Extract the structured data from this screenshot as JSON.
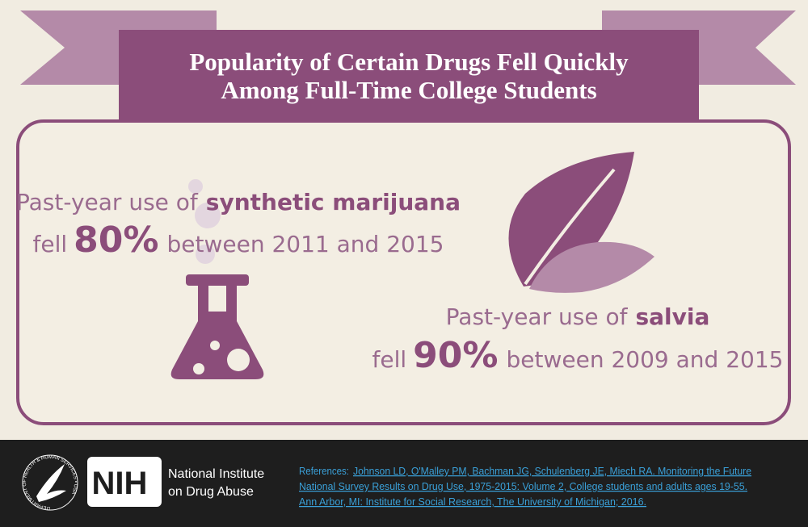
{
  "header": {
    "title_lines": [
      "Popularity of Certain Drugs Fell Quickly",
      "Among Full-Time College Students"
    ]
  },
  "stats": [
    {
      "line1": [
        "Past-year use of",
        "synthetic marijuana"
      ],
      "line2": [
        "fell",
        "80%",
        "between 2011 and 2015"
      ]
    },
    {
      "line1": [
        "Past-year use of",
        "salvia"
      ],
      "line2": [
        "fell",
        "90%",
        "between 2009 and 2015"
      ]
    }
  ],
  "footer": {
    "seal_text": "DEPARTMENT OF HEALTH & HUMAN SERVICES • USA",
    "nih": "NIH",
    "institute_lines": [
      "National Institute",
      "on Drug Abuse"
    ],
    "references_label": "References:",
    "reference_lines": [
      "Johnson LD, O'Malley PM, Bachman JG, Schulenberg JE, Miech RA. Monitoring the Future",
      "National Survey Results on Drug Use, 1975-2015: Volume 2, College students and adults ages 19-55.",
      "Ann Arbor, MI: Institute for Social Research, The University of Michigan; 2016."
    ]
  }
}
